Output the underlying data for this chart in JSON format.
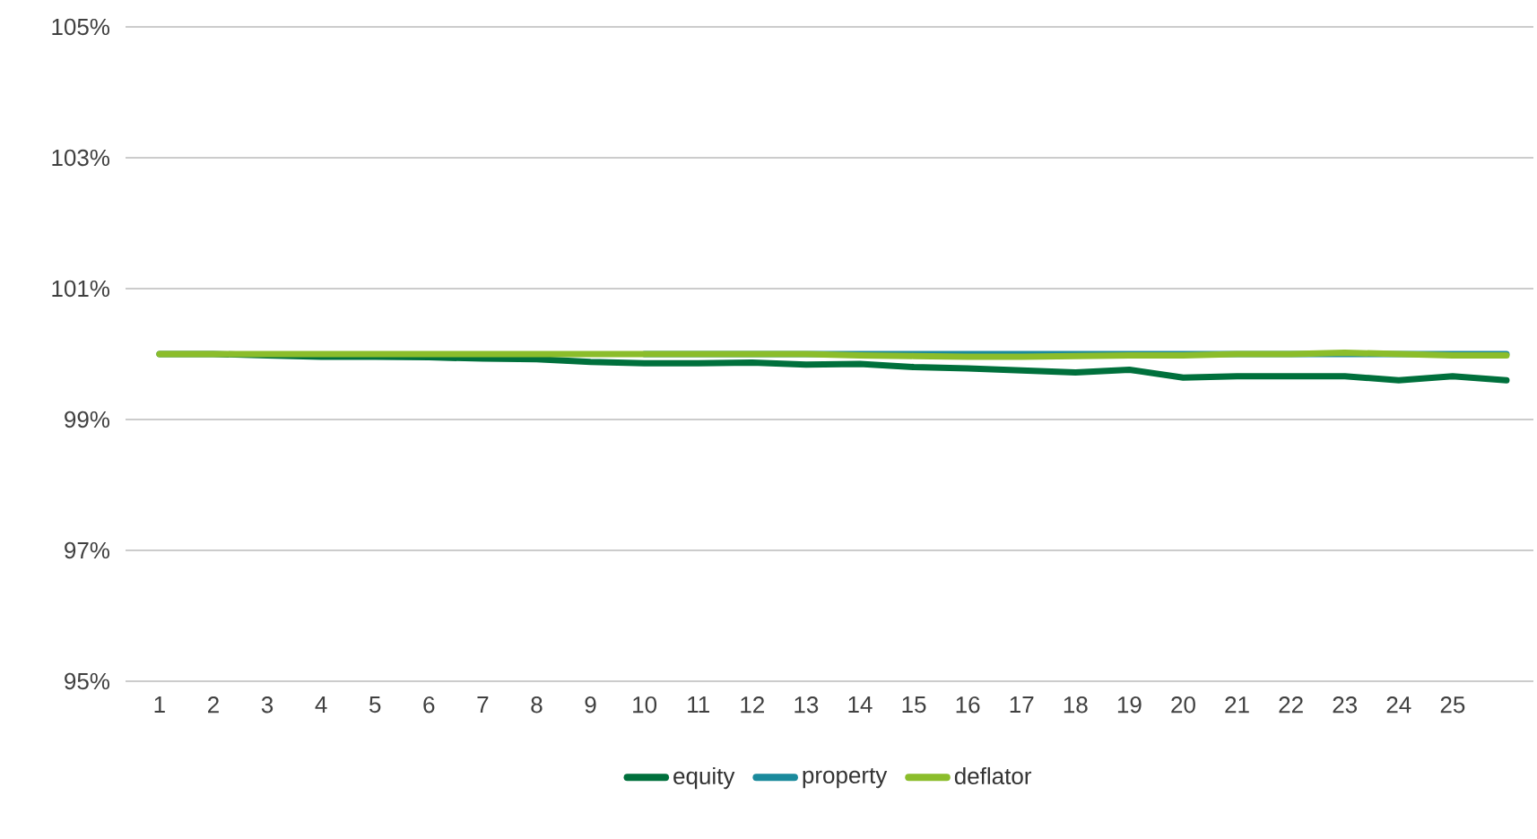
{
  "chart_data": {
    "type": "line",
    "categories": [
      "1",
      "2",
      "3",
      "4",
      "5",
      "6",
      "7",
      "8",
      "9",
      "10",
      "11",
      "12",
      "13",
      "14",
      "15",
      "16",
      "17",
      "18",
      "19",
      "20",
      "21",
      "22",
      "23",
      "24",
      "25",
      null
    ],
    "series": [
      {
        "name": "equity",
        "color": "#00703c",
        "values": [
          100,
          100,
          99.98,
          99.96,
          99.96,
          99.95,
          99.93,
          99.92,
          99.88,
          99.86,
          99.86,
          99.87,
          99.84,
          99.85,
          99.8,
          99.78,
          99.75,
          99.72,
          99.76,
          99.64,
          99.66,
          99.66,
          99.66,
          99.6,
          99.66,
          99.6
        ]
      },
      {
        "name": "property",
        "color": "#1a8a9c",
        "values": [
          null,
          null,
          null,
          null,
          null,
          null,
          null,
          null,
          null,
          100,
          100,
          100,
          100,
          100,
          100,
          100,
          100,
          100,
          100,
          100,
          100,
          100,
          100,
          100,
          100,
          100
        ]
      },
      {
        "name": "deflator",
        "color": "#8bbd2b",
        "values": [
          100,
          100,
          100,
          100,
          100,
          100,
          100,
          100,
          100,
          100,
          100,
          100,
          100,
          99.98,
          99.97,
          99.96,
          99.96,
          99.97,
          99.98,
          99.98,
          100,
          100,
          100.02,
          100,
          99.98,
          99.98
        ]
      }
    ],
    "ylim": [
      95,
      105
    ],
    "yticks": [
      {
        "value": 95,
        "label": "95%"
      },
      {
        "value": 97,
        "label": "97%"
      },
      {
        "value": 99,
        "label": "99%"
      },
      {
        "value": 101,
        "label": "101%"
      },
      {
        "value": 103,
        "label": "103%"
      },
      {
        "value": 105,
        "label": "105%"
      }
    ],
    "grid": "y",
    "legend": "bottom"
  }
}
